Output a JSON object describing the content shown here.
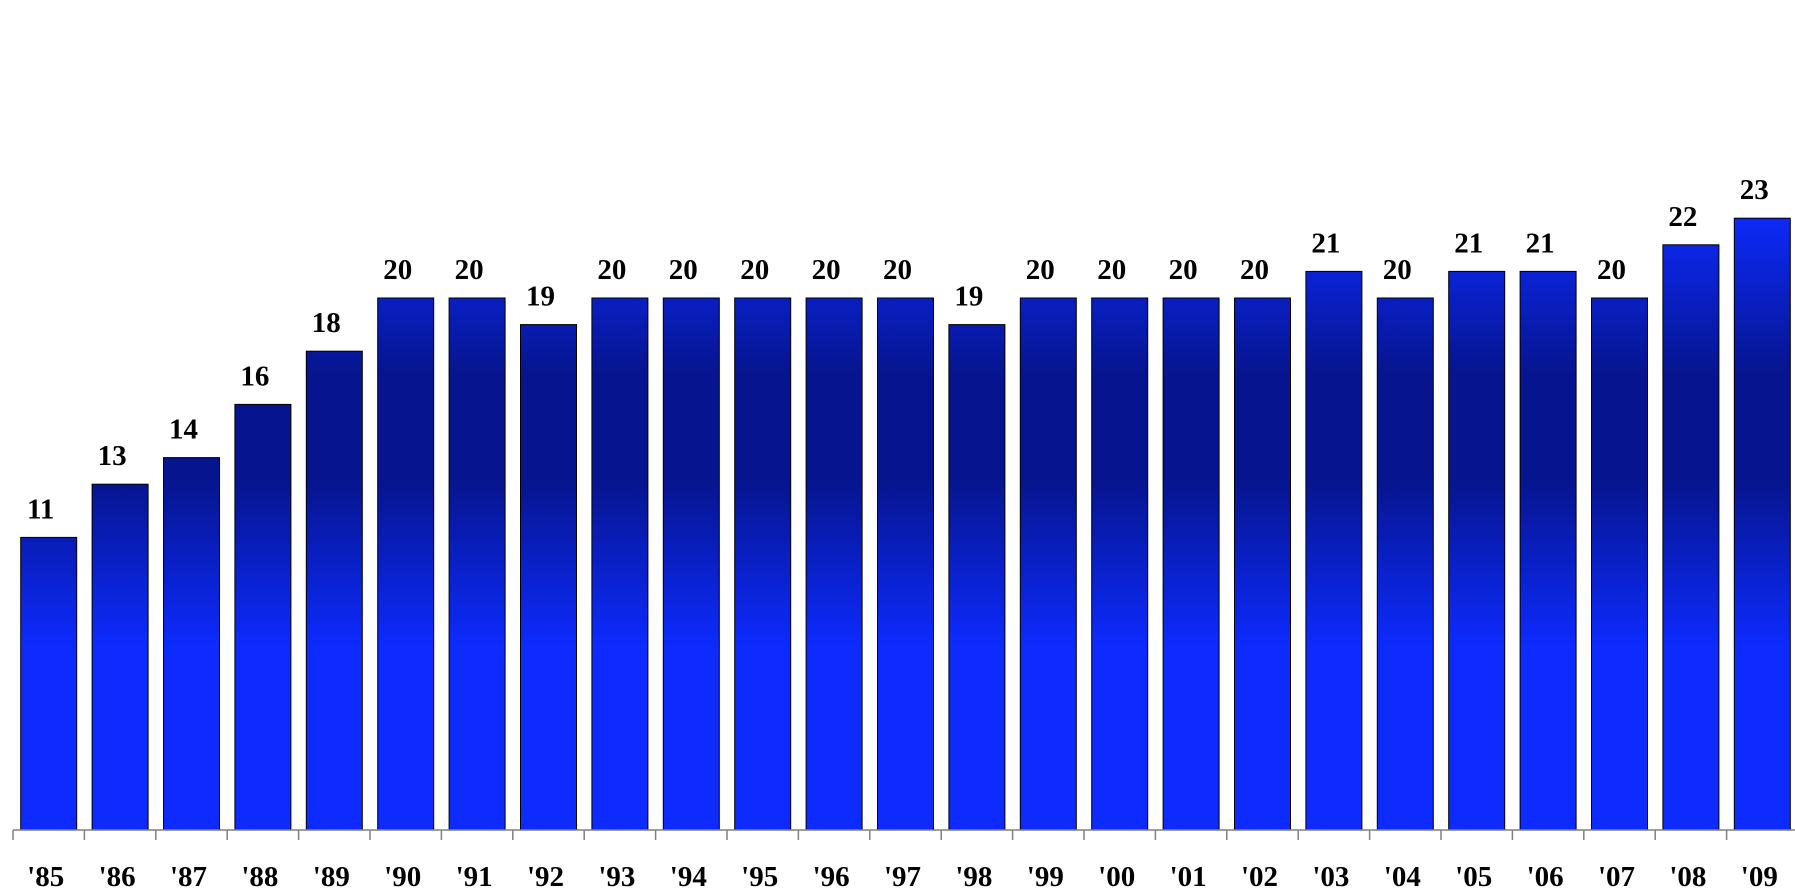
{
  "chart_data": {
    "type": "bar",
    "categories": [
      "'85",
      "'86",
      "'87",
      "'88",
      "'89",
      "'90",
      "'91",
      "'92",
      "'93",
      "'94",
      "'95",
      "'96",
      "'97",
      "'98",
      "'99",
      "'00",
      "'01",
      "'02",
      "'03",
      "'04",
      "'05",
      "'06",
      "'07",
      "'08",
      "'09"
    ],
    "values": [
      11,
      13,
      14,
      16,
      18,
      20,
      20,
      19,
      20,
      20,
      20,
      20,
      20,
      19,
      20,
      20,
      20,
      20,
      21,
      20,
      21,
      21,
      20,
      22,
      23
    ],
    "title": "",
    "xlabel": "",
    "ylabel": "",
    "ylim": [
      0,
      23
    ],
    "data_labels": true,
    "grid": false,
    "y_axis_visible": false,
    "bar_color_light": "#0d2bff",
    "bar_color_dark": "#06158f",
    "bar_outline": "#000000"
  }
}
